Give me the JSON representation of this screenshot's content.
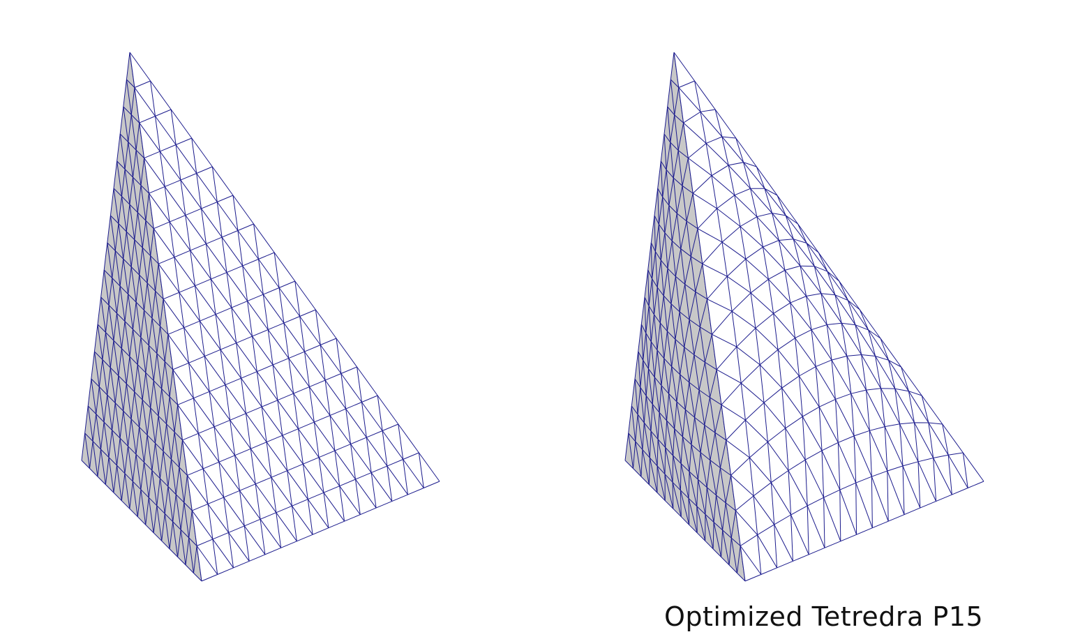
{
  "figure": {
    "caption": "Optimized Tetredra P15",
    "subdivisions": 15,
    "colors": {
      "mesh_line": "#1a1a8c",
      "shaded_face": "#c8c8c8",
      "lit_face": "#ffffff",
      "background": "#ffffff"
    }
  },
  "panels": [
    {
      "id": "left",
      "kind": "linear-tetrahedron-mesh"
    },
    {
      "id": "right",
      "kind": "curved-optimized-tetrahedron-mesh"
    }
  ]
}
